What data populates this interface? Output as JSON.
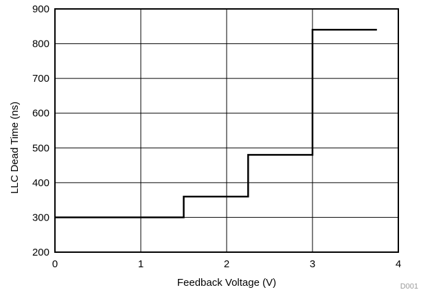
{
  "chart_data": {
    "type": "line",
    "line_style": "step",
    "title": "",
    "xlabel": "Feedback Voltage (V)",
    "ylabel": "LLC Dead Time (ns)",
    "xlim": [
      0,
      4
    ],
    "ylim": [
      200,
      900
    ],
    "x_ticks": [
      0,
      1,
      2,
      3,
      4
    ],
    "y_ticks": [
      200,
      300,
      400,
      500,
      600,
      700,
      800,
      900
    ],
    "grid": true,
    "series": [
      {
        "x": [
          0,
          1.5,
          1.5,
          2.25,
          2.25,
          3.0,
          3.0,
          3.75
        ],
        "y": [
          300,
          300,
          360,
          360,
          480,
          480,
          840,
          840
        ]
      }
    ],
    "annotation": "D001"
  },
  "colors": {
    "line": "#000000",
    "grid": "#000000",
    "figure_id": "#9a9a9a"
  }
}
